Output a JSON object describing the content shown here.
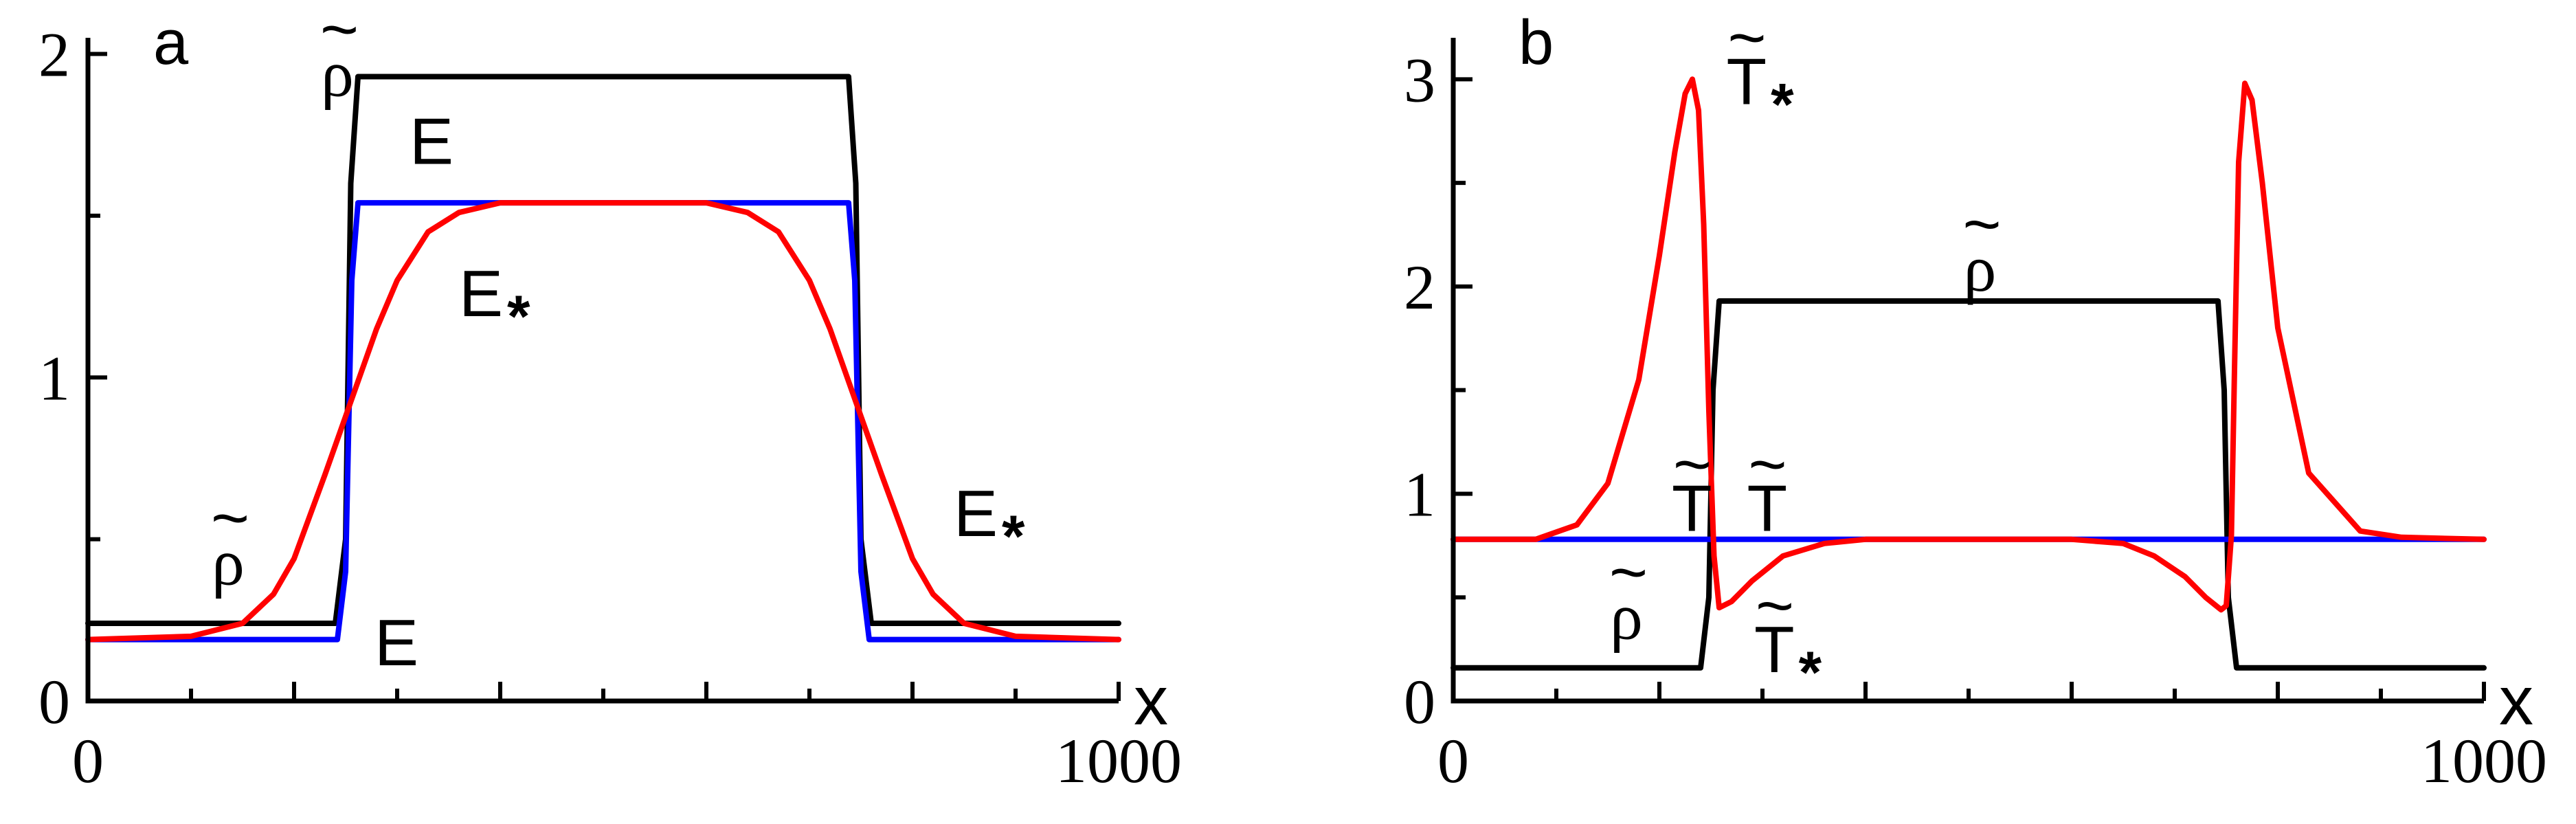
{
  "chart_data": [
    {
      "type": "line",
      "panel_letter": "a",
      "xlabel": "x",
      "ylabel": "",
      "xlim": [
        0,
        1000
      ],
      "ylim": [
        0,
        2.05
      ],
      "x_tick_labels": [
        "0",
        "1000"
      ],
      "y_tick_labels": [
        "0",
        "1",
        "2"
      ],
      "grid": false,
      "legend": "none",
      "series": [
        {
          "color": "#000000",
          "x": [
            0,
            240,
            250,
            255,
            262,
            300,
            500,
            700,
            738,
            745,
            750,
            760,
            1000
          ],
          "y": [
            0.24,
            0.24,
            0.5,
            1.6,
            1.93,
            1.93,
            1.93,
            1.93,
            1.93,
            1.6,
            0.5,
            0.24,
            0.24
          ]
        },
        {
          "color": "#0000ff",
          "x": [
            0,
            242,
            250,
            256,
            262,
            300,
            500,
            700,
            738,
            744,
            750,
            758,
            1000
          ],
          "y": [
            0.19,
            0.19,
            0.4,
            1.3,
            1.54,
            1.54,
            1.54,
            1.54,
            1.54,
            1.3,
            0.4,
            0.19,
            0.19
          ]
        },
        {
          "color": "#ff0000",
          "x": [
            0,
            100,
            150,
            180,
            200,
            230,
            250,
            280,
            300,
            330,
            360,
            400,
            500,
            600,
            640,
            670,
            700,
            720,
            750,
            770,
            800,
            820,
            850,
            900,
            1000
          ],
          "y": [
            0.19,
            0.2,
            0.24,
            0.33,
            0.44,
            0.7,
            0.88,
            1.15,
            1.3,
            1.45,
            1.51,
            1.54,
            1.54,
            1.54,
            1.51,
            1.45,
            1.3,
            1.15,
            0.88,
            0.7,
            0.44,
            0.33,
            0.24,
            0.2,
            0.19
          ]
        }
      ],
      "annotations": [
        {
          "base": "ρ",
          "tilde": "~",
          "sub": "",
          "x": 226,
          "y": 1.87
        },
        {
          "base": "E",
          "tilde": "",
          "sub": "",
          "x": 312,
          "y": 1.66
        },
        {
          "base": "E",
          "tilde": "",
          "sub": "*",
          "x": 360,
          "y": 1.19
        },
        {
          "base": "ρ",
          "tilde": "~",
          "sub": "",
          "x": 120,
          "y": 0.36
        },
        {
          "base": "E",
          "tilde": "",
          "sub": "",
          "x": 278,
          "y": 0.11
        },
        {
          "base": "E",
          "tilde": "",
          "sub": "*",
          "x": 840,
          "y": 0.51
        }
      ]
    },
    {
      "type": "line",
      "panel_letter": "b",
      "xlabel": "x",
      "ylabel": "",
      "xlim": [
        0,
        1000
      ],
      "ylim": [
        0,
        3.2
      ],
      "x_tick_labels": [
        "0",
        "1000"
      ],
      "y_tick_labels": [
        "0",
        "1",
        "2",
        "3"
      ],
      "grid": false,
      "legend": "none",
      "series": [
        {
          "color": "#000000",
          "x": [
            0,
            240,
            248,
            252,
            258,
            300,
            500,
            700,
            742,
            748,
            752,
            760,
            1000
          ],
          "y": [
            0.16,
            0.16,
            0.5,
            1.5,
            1.93,
            1.93,
            1.93,
            1.93,
            1.93,
            1.5,
            0.5,
            0.16,
            0.16
          ]
        },
        {
          "color": "#0000ff",
          "x": [
            0,
            1000
          ],
          "y": [
            0.78,
            0.78
          ]
        },
        {
          "color": "#ff0000",
          "x": [
            0,
            80,
            120,
            150,
            180,
            200,
            215,
            225,
            232,
            238,
            243,
            248,
            253,
            258,
            270,
            290,
            320,
            360,
            400,
            500,
            600,
            650,
            680,
            710,
            730,
            745,
            750,
            755,
            758,
            762,
            768,
            775,
            785,
            800,
            830,
            880,
            920,
            1000
          ],
          "y": [
            0.78,
            0.78,
            0.85,
            1.05,
            1.55,
            2.15,
            2.65,
            2.93,
            3.0,
            2.85,
            2.3,
            1.4,
            0.7,
            0.45,
            0.48,
            0.58,
            0.7,
            0.76,
            0.78,
            0.78,
            0.78,
            0.76,
            0.7,
            0.6,
            0.5,
            0.44,
            0.46,
            0.8,
            1.6,
            2.6,
            2.98,
            2.9,
            2.5,
            1.8,
            1.1,
            0.82,
            0.79,
            0.78
          ]
        }
      ],
      "annotations": [
        {
          "base": "T",
          "tilde": "~",
          "sub": "*",
          "x": 265,
          "y": 2.88
        },
        {
          "base": "ρ",
          "tilde": "~",
          "sub": "",
          "x": 495,
          "y": 1.98
        },
        {
          "base": "T",
          "tilde": "~",
          "sub": "",
          "x": 212,
          "y": 0.82
        },
        {
          "base": "T",
          "tilde": "~",
          "sub": "",
          "x": 285,
          "y": 0.82
        },
        {
          "base": "ρ",
          "tilde": "~",
          "sub": "",
          "x": 152,
          "y": 0.3
        },
        {
          "base": "T",
          "tilde": "~",
          "sub": "*",
          "x": 292,
          "y": 0.14
        }
      ]
    }
  ]
}
